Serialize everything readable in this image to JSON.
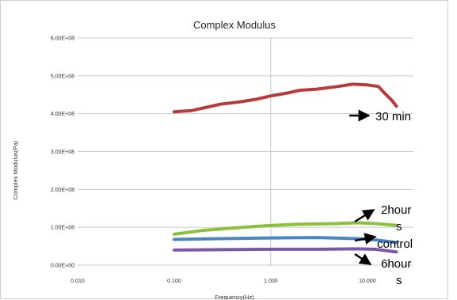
{
  "chart_data": {
    "type": "line",
    "title": "Complex Modulus",
    "xlabel": "Frequency(Hz)",
    "ylabel": "Complex Modulus(Pa)",
    "x_scale": "log",
    "xlim": [
      0.01,
      30
    ],
    "ylim": [
      0,
      6
    ],
    "x_ticks": [
      "0.010",
      "0.100",
      "1.000",
      "10.000"
    ],
    "y_ticks": [
      "0.00E+00",
      "1.00E+08",
      "2.00E+08",
      "3.00E+08",
      "4.00E+08",
      "5.00E+08",
      "6.00E+08"
    ],
    "grid": true,
    "series": [
      {
        "color": "#b83b3b",
        "x": [
          0.1,
          0.15,
          0.2,
          0.3,
          0.5,
          0.7,
          1,
          1.5,
          2,
          3,
          5,
          7,
          10,
          13,
          15,
          18,
          20
        ],
        "y": [
          4.05,
          4.08,
          4.15,
          4.25,
          4.32,
          4.38,
          4.47,
          4.55,
          4.62,
          4.65,
          4.72,
          4.78,
          4.76,
          4.72,
          4.55,
          4.35,
          4.2
        ]
      },
      {
        "color": "#8dbf3f",
        "x": [
          0.1,
          0.2,
          0.5,
          1,
          2,
          5,
          8,
          12,
          20
        ],
        "y": [
          0.82,
          0.92,
          1.0,
          1.05,
          1.08,
          1.1,
          1.12,
          1.1,
          1.05
        ]
      },
      {
        "color": "#4a86c4",
        "x": [
          0.1,
          0.3,
          1,
          3,
          8,
          12,
          20
        ],
        "y": [
          0.68,
          0.7,
          0.72,
          0.73,
          0.7,
          0.67,
          0.6
        ]
      },
      {
        "color": "#7b58a6",
        "x": [
          0.1,
          0.3,
          1,
          3,
          8,
          12,
          20
        ],
        "y": [
          0.4,
          0.41,
          0.42,
          0.42,
          0.43,
          0.42,
          0.35
        ]
      }
    ],
    "annotations": [
      "30 min",
      "2hour",
      "s",
      "control",
      "6hour",
      "s"
    ]
  },
  "colors": {
    "grid": "#c8c8c8",
    "frame": "#d0d0d0"
  }
}
